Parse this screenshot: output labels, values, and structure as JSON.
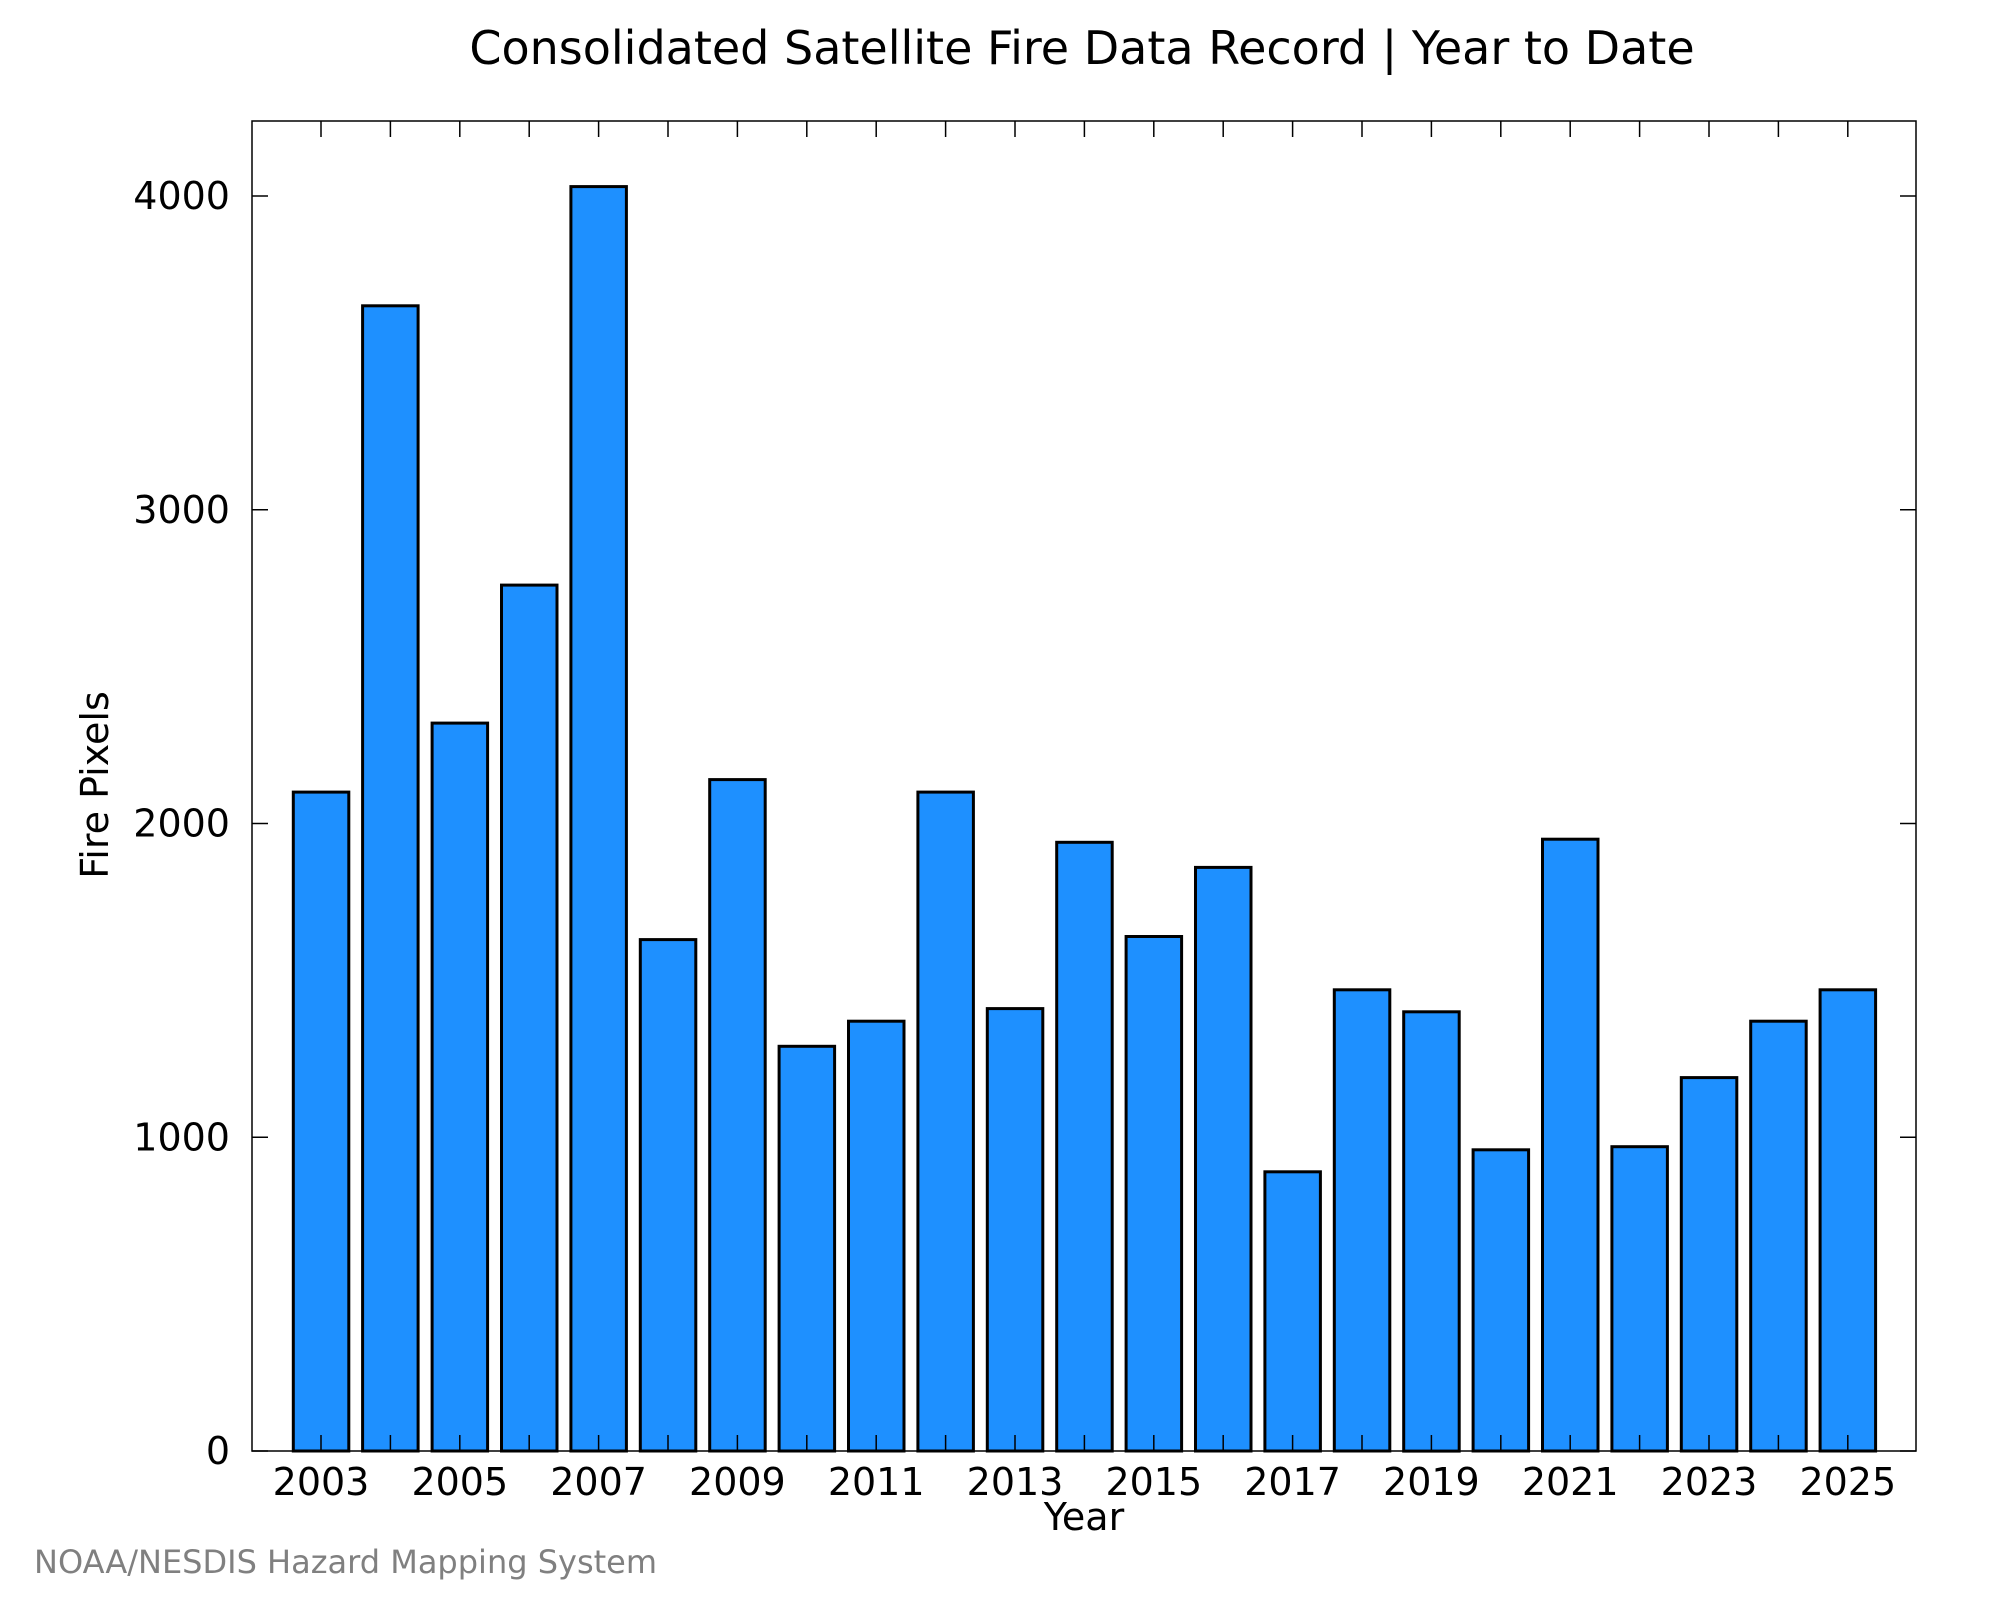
{
  "chart_data": {
    "type": "bar",
    "title": "Consolidated Satellite Fire Data Record | Year to Date",
    "xlabel": "Year",
    "ylabel": "Fire Pixels",
    "categories": [
      "2003",
      "2004",
      "2005",
      "2006",
      "2007",
      "2008",
      "2009",
      "2010",
      "2011",
      "2012",
      "2013",
      "2014",
      "2015",
      "2016",
      "2017",
      "2018",
      "2019",
      "2020",
      "2021",
      "2022",
      "2023",
      "2024",
      "2025"
    ],
    "values": [
      2100,
      3650,
      2320,
      2760,
      4030,
      1630,
      2140,
      1290,
      1370,
      2100,
      1410,
      1940,
      1640,
      1860,
      890,
      1470,
      1400,
      960,
      1950,
      970,
      1190,
      1370,
      1470
    ],
    "x_tick_labels": [
      "2003",
      "2005",
      "2007",
      "2009",
      "2011",
      "2013",
      "2015",
      "2017",
      "2019",
      "2021",
      "2023",
      "2025"
    ],
    "y_ticks": [
      0,
      1000,
      2000,
      3000,
      4000
    ],
    "y_tick_labels": [
      "0",
      "1000",
      "2000",
      "3000",
      "4000"
    ],
    "ylim": [
      0,
      4230
    ],
    "grid": false,
    "legend": "none",
    "bar_color": "#1E90FF",
    "bar_edge_color": "#000000"
  },
  "credit": {
    "text": "NOAA/NESDIS Hazard Mapping System",
    "color": "#808080"
  }
}
